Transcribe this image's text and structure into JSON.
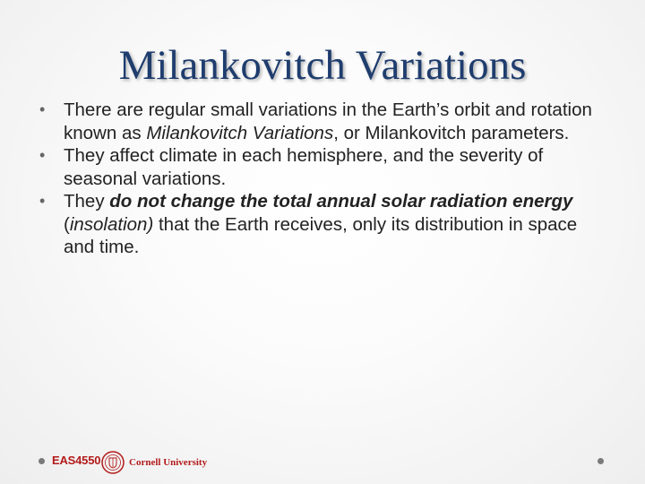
{
  "slide": {
    "title": "Milankovitch Variations",
    "bullets": [
      {
        "p1": "There are regular small variations in the Earth’s orbit and rotation known as ",
        "em": "Milankovitch Variations",
        "p2": ", or Milankovitch parameters."
      },
      {
        "text": "They affect climate in each hemisphere, and the severity of seasonal variations."
      },
      {
        "p1": "They ",
        "strong": "do not change the total annual solar radiation energy",
        "p2": " (",
        "em": "insolation)",
        "p3": " that the Earth receives, only its distribution in space and time."
      }
    ]
  },
  "footer": {
    "course": "EAS4550",
    "university": "Cornell University",
    "seal_icon": "cornell-seal-icon",
    "accent_color": "#b31b1b"
  },
  "colors": {
    "title": "#1f3d6e",
    "body": "#222222"
  }
}
